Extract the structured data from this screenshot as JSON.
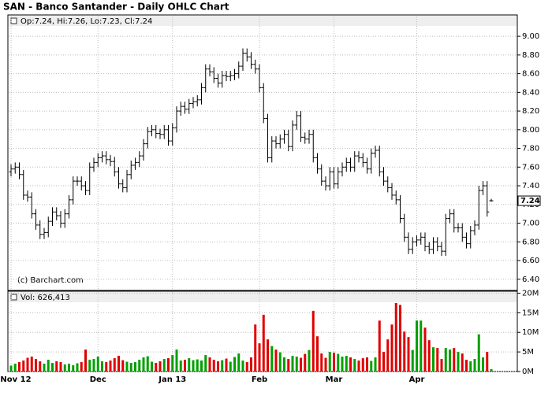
{
  "chart_data": [
    {
      "type": "ohlc",
      "title": "SAN - Banco Santander - Daily OHLC Chart",
      "legend": "Op:7.24, Hi:7.26, Lo:7.23, Cl:7.24",
      "credit": "(c) Barchart.com",
      "color": "#000000",
      "grid": true,
      "categories": [
        "Nov 12",
        null,
        null,
        null,
        null,
        null,
        null,
        null,
        null,
        null,
        null,
        null,
        null,
        null,
        null,
        null,
        null,
        null,
        null,
        null,
        null,
        "Dec",
        null,
        null,
        null,
        null,
        null,
        null,
        null,
        null,
        null,
        null,
        null,
        null,
        null,
        null,
        null,
        null,
        null,
        "Jan 13",
        null,
        null,
        null,
        null,
        null,
        null,
        null,
        null,
        null,
        null,
        null,
        null,
        null,
        null,
        null,
        null,
        null,
        null,
        null,
        null,
        "Feb",
        null,
        null,
        null,
        null,
        null,
        null,
        null,
        null,
        null,
        null,
        null,
        null,
        null,
        null,
        null,
        null,
        null,
        "Mar",
        null,
        null,
        null,
        null,
        null,
        null,
        null,
        null,
        null,
        null,
        null,
        null,
        null,
        null,
        null,
        null,
        null,
        null,
        null,
        "Apr",
        null,
        null,
        null,
        null,
        null,
        null,
        null,
        null,
        null,
        null,
        null,
        null,
        null,
        null,
        null,
        null,
        null,
        null
      ],
      "open": [
        7.55,
        7.58,
        7.6,
        7.52,
        7.3,
        7.28,
        7.1,
        6.98,
        6.88,
        6.9,
        7.02,
        7.12,
        7.08,
        7.0,
        7.1,
        7.25,
        7.45,
        7.45,
        7.4,
        7.35,
        7.6,
        7.65,
        7.7,
        7.72,
        7.68,
        7.66,
        7.55,
        7.42,
        7.38,
        7.52,
        7.62,
        7.65,
        7.72,
        7.85,
        7.98,
        8.0,
        7.96,
        7.95,
        8.0,
        7.88,
        8.02,
        8.2,
        8.25,
        8.22,
        8.28,
        8.3,
        8.32,
        8.45,
        8.65,
        8.62,
        8.55,
        8.5,
        8.58,
        8.57,
        8.58,
        8.6,
        8.68,
        8.82,
        8.78,
        8.7,
        8.65,
        8.45,
        8.12,
        7.7,
        7.88,
        7.85,
        7.9,
        7.95,
        7.82,
        8.05,
        8.15,
        7.92,
        7.9,
        7.95,
        7.7,
        7.58,
        7.45,
        7.4,
        7.55,
        7.42,
        7.55,
        7.6,
        7.65,
        7.6,
        7.72,
        7.7,
        7.65,
        7.58,
        7.75,
        7.78,
        7.55,
        7.45,
        7.38,
        7.3,
        7.25,
        7.05,
        6.85,
        6.72,
        6.8,
        6.82,
        6.85,
        6.75,
        6.72,
        6.8,
        6.75,
        6.7,
        7.05,
        7.1,
        6.95,
        6.95,
        6.85,
        6.78,
        6.92,
        6.98,
        7.35,
        7.4,
        7.24
      ],
      "high": [
        7.63,
        7.65,
        7.65,
        7.57,
        7.35,
        7.33,
        7.15,
        7.03,
        6.95,
        7.07,
        7.17,
        7.17,
        7.13,
        7.15,
        7.3,
        7.5,
        7.5,
        7.5,
        7.45,
        7.65,
        7.7,
        7.75,
        7.77,
        7.77,
        7.73,
        7.71,
        7.6,
        7.47,
        7.57,
        7.67,
        7.7,
        7.77,
        7.9,
        8.03,
        8.05,
        8.05,
        8.01,
        8.05,
        8.05,
        8.07,
        8.25,
        8.3,
        8.3,
        8.33,
        8.35,
        8.37,
        8.5,
        8.7,
        8.7,
        8.67,
        8.6,
        8.63,
        8.63,
        8.63,
        8.65,
        8.73,
        8.87,
        8.87,
        8.83,
        8.75,
        8.7,
        8.5,
        8.17,
        7.93,
        7.93,
        7.95,
        8.0,
        8.0,
        8.1,
        8.2,
        8.2,
        7.97,
        8.0,
        8.0,
        7.75,
        7.63,
        7.5,
        7.6,
        7.6,
        7.6,
        7.65,
        7.7,
        7.7,
        7.77,
        7.77,
        7.75,
        7.7,
        7.8,
        7.83,
        7.83,
        7.6,
        7.5,
        7.43,
        7.35,
        7.3,
        7.1,
        6.9,
        6.85,
        6.87,
        6.9,
        6.9,
        6.8,
        6.85,
        6.85,
        6.8,
        7.1,
        7.15,
        7.15,
        7.0,
        7.0,
        6.9,
        6.97,
        7.03,
        7.4,
        7.45,
        7.45,
        7.26
      ],
      "low": [
        7.5,
        7.53,
        7.47,
        7.25,
        7.23,
        7.05,
        6.93,
        6.83,
        6.83,
        6.85,
        6.97,
        7.03,
        6.95,
        6.95,
        7.05,
        7.2,
        7.4,
        7.35,
        7.3,
        7.3,
        7.55,
        7.6,
        7.65,
        7.63,
        7.61,
        7.5,
        7.37,
        7.33,
        7.33,
        7.47,
        7.57,
        7.6,
        7.67,
        7.8,
        7.93,
        7.91,
        7.9,
        7.9,
        7.83,
        7.83,
        7.97,
        8.15,
        8.17,
        8.17,
        8.23,
        8.25,
        8.27,
        8.4,
        8.57,
        8.5,
        8.45,
        8.45,
        8.52,
        8.52,
        8.53,
        8.55,
        8.63,
        8.73,
        8.65,
        8.6,
        8.4,
        8.07,
        7.65,
        7.65,
        7.8,
        7.8,
        7.85,
        7.77,
        7.77,
        8.0,
        7.87,
        7.85,
        7.85,
        7.65,
        7.53,
        7.4,
        7.35,
        7.35,
        7.37,
        7.37,
        7.5,
        7.55,
        7.55,
        7.55,
        7.65,
        7.6,
        7.53,
        7.53,
        7.7,
        7.5,
        7.4,
        7.33,
        7.25,
        7.2,
        7.0,
        6.8,
        6.67,
        6.67,
        6.75,
        6.77,
        6.7,
        6.67,
        6.67,
        6.7,
        6.65,
        6.65,
        7.0,
        6.9,
        6.9,
        6.8,
        6.73,
        6.73,
        6.87,
        6.93,
        7.3,
        7.07,
        7.23
      ],
      "close": [
        7.58,
        7.6,
        7.52,
        7.3,
        7.28,
        7.1,
        6.98,
        6.88,
        6.9,
        7.02,
        7.12,
        7.08,
        7.0,
        7.1,
        7.25,
        7.45,
        7.45,
        7.4,
        7.35,
        7.6,
        7.65,
        7.7,
        7.72,
        7.68,
        7.66,
        7.55,
        7.42,
        7.38,
        7.52,
        7.62,
        7.65,
        7.72,
        7.85,
        7.98,
        8.0,
        7.96,
        7.95,
        8.0,
        7.88,
        8.02,
        8.2,
        8.25,
        8.22,
        8.28,
        8.3,
        8.32,
        8.45,
        8.65,
        8.62,
        8.55,
        8.5,
        8.58,
        8.57,
        8.58,
        8.6,
        8.68,
        8.82,
        8.78,
        8.7,
        8.65,
        8.45,
        8.12,
        7.7,
        7.88,
        7.85,
        7.9,
        7.95,
        7.82,
        8.05,
        8.15,
        7.92,
        7.9,
        7.95,
        7.7,
        7.58,
        7.45,
        7.4,
        7.55,
        7.42,
        7.55,
        7.6,
        7.65,
        7.6,
        7.72,
        7.7,
        7.65,
        7.58,
        7.75,
        7.78,
        7.55,
        7.45,
        7.38,
        7.3,
        7.25,
        7.05,
        6.85,
        6.72,
        6.8,
        6.82,
        6.85,
        6.75,
        6.72,
        6.8,
        6.75,
        6.7,
        7.05,
        7.1,
        6.95,
        6.95,
        6.85,
        6.78,
        6.92,
        6.98,
        7.35,
        7.4,
        7.12,
        7.24
      ],
      "ylim": [
        6.28,
        9.22
      ],
      "yticks": [
        {
          "value": 6.4,
          "label": "6.40"
        },
        {
          "value": 6.6,
          "label": "6.60"
        },
        {
          "value": 6.8,
          "label": "6.80"
        },
        {
          "value": 7.0,
          "label": "7.00"
        },
        {
          "value": 7.2,
          "label": "7.20"
        },
        {
          "value": 7.4,
          "label": "7.40"
        },
        {
          "value": 7.6,
          "label": "7.60"
        },
        {
          "value": 7.8,
          "label": "7.80"
        },
        {
          "value": 8.0,
          "label": "8.00"
        },
        {
          "value": 8.2,
          "label": "8.20"
        },
        {
          "value": 8.4,
          "label": "8.40"
        },
        {
          "value": 8.6,
          "label": "8.60"
        },
        {
          "value": 8.8,
          "label": "8.80"
        },
        {
          "value": 9.0,
          "label": "9.00"
        }
      ]
    },
    {
      "type": "bar",
      "legend": "Vol: 626,413",
      "up_color": "#00a000",
      "down_color": "#e00000",
      "grid": true,
      "values": [
        1500000,
        2000000,
        2400000,
        2800000,
        3500000,
        3800000,
        3200000,
        2600000,
        2000000,
        3000000,
        2200000,
        2600000,
        2400000,
        1800000,
        2000000,
        1600000,
        2100000,
        2400000,
        5600000,
        3000000,
        3200000,
        3800000,
        2600000,
        2400000,
        2800000,
        3400000,
        4000000,
        2900000,
        2500000,
        2200000,
        2400000,
        3000000,
        3600000,
        3900000,
        2500000,
        2200000,
        2600000,
        3200000,
        3400000,
        4200000,
        5600000,
        2800000,
        3000000,
        3400000,
        2900000,
        3100000,
        2800000,
        4200000,
        3600000,
        3000000,
        2600000,
        2900000,
        3300000,
        2500000,
        3700000,
        4600000,
        2800000,
        2400000,
        3600000,
        12000000,
        7200000,
        14500000,
        8200000,
        6500000,
        5600000,
        4900000,
        3600000,
        3200000,
        4000000,
        3800000,
        3500000,
        4500000,
        5500000,
        15500000,
        9000000,
        4600000,
        3500000,
        5000000,
        4800000,
        4500000,
        3800000,
        4000000,
        3600000,
        3200000,
        2800000,
        3400000,
        3600000,
        2700000,
        3600000,
        13000000,
        5000000,
        8200000,
        12000000,
        17500000,
        17000000,
        10200000,
        8800000,
        5500000,
        13000000,
        13000000,
        11200000,
        8000000,
        6200000,
        6000000,
        3200000,
        6000000,
        5600000,
        6000000,
        5000000,
        4600000,
        3000000,
        2600000,
        3200000,
        9500000,
        3600000,
        5000000,
        626413
      ],
      "ylim": [
        0,
        20500000
      ],
      "yticks": [
        {
          "value": 0,
          "label": "0M"
        },
        {
          "value": 5000000,
          "label": "5M"
        },
        {
          "value": 10000000,
          "label": "10M"
        },
        {
          "value": 15000000,
          "label": "15M"
        },
        {
          "value": 20000000,
          "label": "20M"
        }
      ]
    }
  ]
}
